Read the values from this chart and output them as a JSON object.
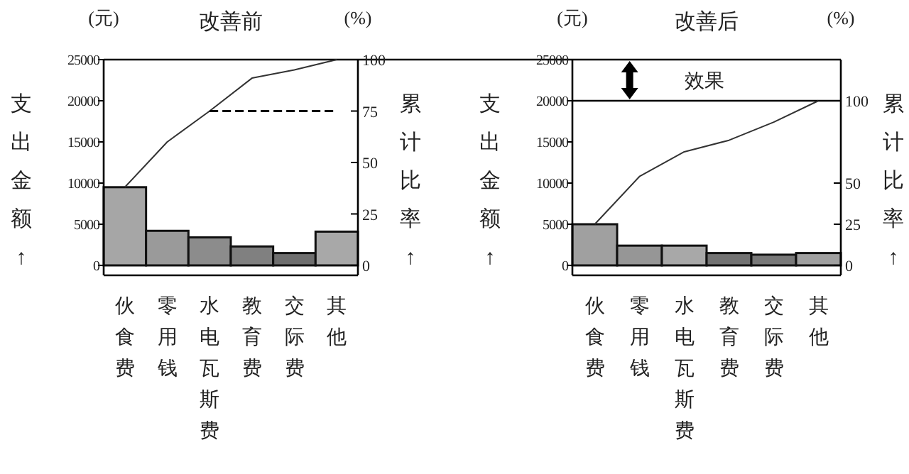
{
  "chart_data": [
    {
      "type": "bar",
      "title": "改善前",
      "ylabel": "支出金额↑",
      "y2label": "累计比率↑",
      "annotations": [
        "(元)",
        "(%)"
      ],
      "categories": [
        "伙食费",
        "零用钱",
        "水电瓦斯费",
        "教育费",
        "交际费",
        "其他"
      ],
      "ylim": [
        0,
        25000
      ],
      "yticks": [
        0,
        5000,
        10000,
        15000,
        20000,
        25000
      ],
      "y2lim": [
        0,
        100
      ],
      "y2ticks": [
        0,
        25,
        50,
        75,
        100
      ],
      "series": [
        {
          "colors": [
            "#a6a6a6",
            "#9a9a9a",
            "#8c8c8c",
            "#808080",
            "#6e6e6e",
            "#a8a8a8"
          ],
          "values": [
            9500,
            4200,
            3400,
            2300,
            1500,
            4100
          ]
        },
        {
          "type": "line",
          "axis": "y2",
          "color": "#333333",
          "values": [
            38,
            60,
            75,
            91,
            95,
            100
          ]
        },
        {
          "type": "line",
          "axis": "y2",
          "color": "#000000",
          "line_style": "dashed",
          "values": [
            null,
            null,
            75,
            75,
            75,
            75
          ]
        }
      ],
      "ref_lines": [
        {
          "axis": "y",
          "value": 25000,
          "color": "#000000"
        }
      ]
    },
    {
      "type": "bar",
      "title": "改善后",
      "ylabel": "支出金额↑",
      "y2label": "累计比率↑",
      "annotations": [
        "(元)",
        "(%)",
        "效果"
      ],
      "categories": [
        "伙食费",
        "零用钱",
        "水电瓦斯费",
        "教育费",
        "交际费",
        "其他"
      ],
      "ylim": [
        0,
        25000
      ],
      "yticks": [
        0,
        5000,
        10000,
        15000,
        20000,
        25000
      ],
      "y2lim": [
        0,
        125
      ],
      "y2ticks": [
        0,
        25,
        50,
        100
      ],
      "series": [
        {
          "colors": [
            "#a0a0a0",
            "#969696",
            "#a8a8a8",
            "#727272",
            "#787878",
            "#a0a0a0"
          ],
          "values": [
            5000,
            2400,
            2400,
            1500,
            1300,
            1500
          ]
        },
        {
          "type": "line",
          "axis": "y2",
          "color": "#333333",
          "values": [
            25,
            54,
            69,
            76,
            87,
            100
          ]
        }
      ],
      "ref_lines": [
        {
          "axis": "y",
          "value": 20000,
          "color": "#000000"
        }
      ]
    }
  ]
}
